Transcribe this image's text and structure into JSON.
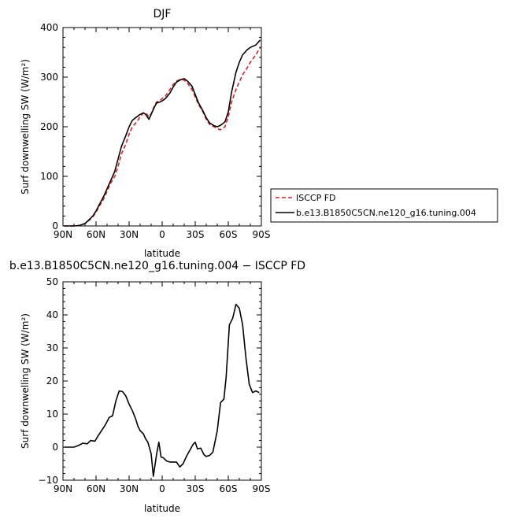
{
  "chart_data": [
    {
      "type": "line",
      "title": "DJF",
      "xlabel": "latitude",
      "ylabel": "Surf downwelling SW (W/m²)",
      "xlim": [
        90,
        -90
      ],
      "ylim": [
        0,
        400
      ],
      "x_ticks": [
        90,
        60,
        30,
        0,
        -30,
        -60,
        -90
      ],
      "x_tick_labels": [
        "90N",
        "60N",
        "30N",
        "0",
        "30S",
        "60S",
        "90S"
      ],
      "y_ticks": [
        0,
        100,
        200,
        300,
        400
      ],
      "y_tick_labels": [
        "0",
        "100",
        "200",
        "300",
        "400"
      ],
      "legend_position": "right",
      "series": [
        {
          "name": "ISCCP FD",
          "color": "#e41a1c",
          "dash": "dashed",
          "x": [
            89,
            85,
            80,
            75,
            70,
            67,
            63,
            60,
            57,
            53,
            50,
            47,
            43,
            40,
            37,
            33,
            30,
            27,
            23,
            20,
            17,
            15,
            12,
            10,
            7,
            5,
            2,
            0,
            -3,
            -7,
            -10,
            -13,
            -17,
            -20,
            -23,
            -27,
            -30,
            -33,
            -37,
            -40,
            -43,
            -47,
            -50,
            -53,
            -57,
            -60,
            -63,
            -67,
            -70,
            -73,
            -77,
            -80,
            -85,
            -89
          ],
          "y": [
            0,
            0,
            0,
            1,
            5,
            10,
            18,
            28,
            40,
            55,
            70,
            85,
            100,
            120,
            145,
            165,
            185,
            200,
            210,
            220,
            228,
            228,
            220,
            226,
            242,
            250,
            253,
            257,
            262,
            275,
            285,
            292,
            296,
            294,
            288,
            275,
            260,
            245,
            230,
            215,
            205,
            200,
            196,
            194,
            200,
            220,
            250,
            275,
            290,
            305,
            318,
            330,
            345,
            360
          ]
        },
        {
          "name": "b.e13.B1850C5CN.ne120_g16.tuning.004",
          "color": "#000000",
          "dash": "solid",
          "x": [
            89,
            85,
            80,
            75,
            70,
            67,
            63,
            60,
            57,
            53,
            50,
            47,
            43,
            40,
            37,
            33,
            30,
            27,
            23,
            20,
            17,
            15,
            12,
            10,
            7,
            5,
            2,
            0,
            -3,
            -7,
            -10,
            -13,
            -17,
            -20,
            -23,
            -27,
            -30,
            -33,
            -37,
            -40,
            -43,
            -47,
            -50,
            -53,
            -57,
            -60,
            -63,
            -67,
            -70,
            -73,
            -77,
            -80,
            -85,
            -89
          ],
          "y": [
            0,
            0,
            0,
            1,
            5,
            11,
            20,
            30,
            43,
            60,
            75,
            90,
            110,
            135,
            160,
            182,
            200,
            213,
            220,
            225,
            228,
            225,
            215,
            225,
            240,
            248,
            250,
            252,
            257,
            268,
            280,
            290,
            295,
            297,
            292,
            282,
            265,
            248,
            232,
            218,
            208,
            202,
            200,
            203,
            210,
            230,
            270,
            310,
            330,
            345,
            355,
            360,
            365,
            375
          ]
        }
      ]
    },
    {
      "type": "line",
      "title": "b.e13.B1850C5CN.ne120_g16.tuning.004 − ISCCP FD",
      "xlabel": "latitude",
      "ylabel": "Surf downwelling SW (W/m²)",
      "xlim": [
        90,
        -90
      ],
      "ylim": [
        -10,
        50
      ],
      "x_ticks": [
        90,
        60,
        30,
        0,
        -30,
        -60,
        -90
      ],
      "x_tick_labels": [
        "90N",
        "60N",
        "30N",
        "0",
        "30S",
        "60S",
        "90S"
      ],
      "y_ticks": [
        -10,
        0,
        10,
        20,
        30,
        40,
        50
      ],
      "y_tick_labels": [
        "−10",
        "0",
        "10",
        "20",
        "30",
        "40",
        "50"
      ],
      "series": [
        {
          "color": "#000000",
          "dash": "solid",
          "x": [
            89,
            85,
            80,
            76,
            72,
            68,
            65,
            61,
            58,
            55,
            52,
            48,
            45,
            42,
            39,
            36,
            33,
            30,
            27,
            24,
            22,
            20,
            17,
            15,
            13,
            10,
            8,
            5,
            3,
            1,
            -1,
            -4,
            -7,
            -10,
            -13,
            -16,
            -19,
            -22,
            -25,
            -28,
            -30,
            -32,
            -35,
            -38,
            -40,
            -43,
            -46,
            -50,
            -53,
            -56,
            -58,
            -61,
            -64,
            -67,
            -70,
            -73,
            -76,
            -79,
            -82,
            -85,
            -88
          ],
          "y": [
            0,
            0,
            0,
            0.5,
            1.2,
            1.0,
            2.0,
            1.8,
            3.5,
            5.0,
            6.5,
            9.0,
            9.5,
            14.0,
            17.0,
            16.8,
            15.5,
            13.0,
            11.0,
            8.5,
            6.3,
            5.0,
            4.0,
            2.5,
            1.5,
            -2.0,
            -8.8,
            -2.0,
            1.5,
            -3.0,
            -3.2,
            -4.2,
            -4.5,
            -4.5,
            -4.5,
            -6.0,
            -5.0,
            -2.8,
            -1.0,
            0.8,
            1.5,
            -0.5,
            -0.3,
            -2.3,
            -2.8,
            -2.5,
            -1.5,
            5.0,
            13.5,
            14.5,
            21.0,
            37.0,
            39.0,
            43.2,
            42.0,
            37.0,
            27.0,
            19.0,
            16.5,
            17.0,
            16.5
          ]
        }
      ]
    }
  ]
}
